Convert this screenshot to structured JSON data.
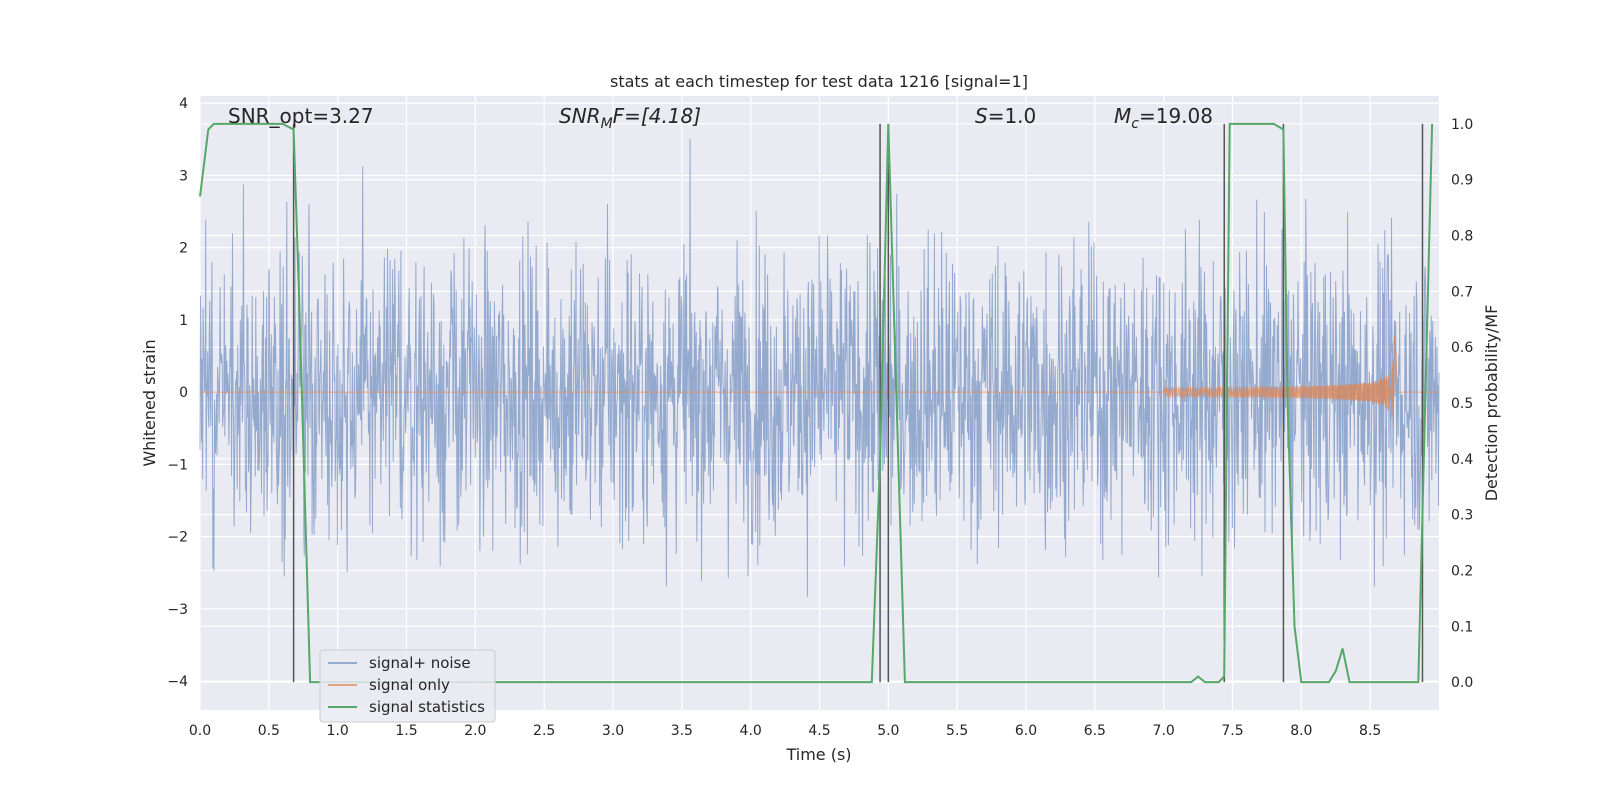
{
  "chart_data": {
    "type": "line",
    "title": "stats at each timestep for test data 1216 [signal=1]",
    "xlabel": "Time (s)",
    "ylabel_left": "Whitened strain",
    "ylabel_right": "Detection probability/MF",
    "xlim": [
      0.0,
      9.0
    ],
    "ylim_left": [
      -4.4,
      4.1
    ],
    "ylim_right": [
      -0.05,
      1.05
    ],
    "x_ticks": [
      "0.0",
      "0.5",
      "1.0",
      "1.5",
      "2.0",
      "2.5",
      "3.0",
      "3.5",
      "4.0",
      "4.5",
      "5.0",
      "5.5",
      "6.0",
      "6.5",
      "7.0",
      "7.5",
      "8.0",
      "8.5"
    ],
    "y_ticks_left": [
      "4",
      "3",
      "2",
      "1",
      "0",
      "−1",
      "−2",
      "−3",
      "−4"
    ],
    "y_ticks_right": [
      "1.0",
      "0.9",
      "0.8",
      "0.7",
      "0.6",
      "0.5",
      "0.4",
      "0.3",
      "0.2",
      "0.1",
      "0.0"
    ],
    "grid": true,
    "background": "#eaeaf2",
    "annotations": {
      "snr_opt": "SNR_opt=3.27",
      "snr_mf": "SNR",
      "snr_mf_sub": "M",
      "snr_mf_rest": "F=[4.18]",
      "s_label": "S",
      "s_value": "=1.0",
      "mc_label": "M",
      "mc_sub": "c",
      "mc_value": "=19.08"
    },
    "vertical_lines_x": [
      0.68,
      4.94,
      5.0,
      7.44,
      7.87,
      8.88
    ],
    "series": [
      {
        "name": "signal+ noise",
        "color": "#4c72b0",
        "kind": "noise",
        "std": 1.0,
        "amplitude_peak": 3.7
      },
      {
        "name": "signal only",
        "color": "#dd8452",
        "kind": "chirp",
        "start": 7.0,
        "merger": 8.68,
        "peak_amplitude": 0.78
      },
      {
        "name": "signal statistics",
        "color": "#55a868",
        "kind": "probability",
        "x": [
          0.0,
          0.06,
          0.1,
          0.2,
          0.3,
          0.4,
          0.5,
          0.6,
          0.68,
          0.72,
          0.8,
          0.9,
          1.0,
          2.0,
          3.0,
          4.0,
          4.8,
          4.88,
          4.94,
          5.0,
          5.06,
          5.12,
          5.2,
          6.0,
          7.0,
          7.2,
          7.25,
          7.3,
          7.35,
          7.4,
          7.44,
          7.48,
          7.6,
          7.7,
          7.8,
          7.87,
          7.9,
          7.95,
          8.0,
          8.1,
          8.2,
          8.25,
          8.3,
          8.35,
          8.4,
          8.5,
          8.6,
          8.7,
          8.8,
          8.85,
          8.9,
          8.95
        ],
        "y": [
          0.87,
          0.99,
          1.0,
          1.0,
          1.0,
          1.0,
          1.0,
          1.0,
          0.99,
          0.69,
          0.0,
          0.0,
          0.0,
          0.0,
          0.0,
          0.0,
          0.0,
          0.0,
          0.4,
          1.0,
          0.5,
          0.0,
          0.0,
          0.0,
          0.0,
          0.0,
          0.01,
          0.0,
          0.0,
          0.0,
          0.01,
          1.0,
          1.0,
          1.0,
          1.0,
          0.99,
          0.5,
          0.1,
          0.0,
          0.0,
          0.0,
          0.02,
          0.06,
          0.0,
          0.0,
          0.0,
          0.0,
          0.0,
          0.0,
          0.0,
          0.5,
          1.0
        ]
      }
    ],
    "legend_position": "bottom-left"
  }
}
